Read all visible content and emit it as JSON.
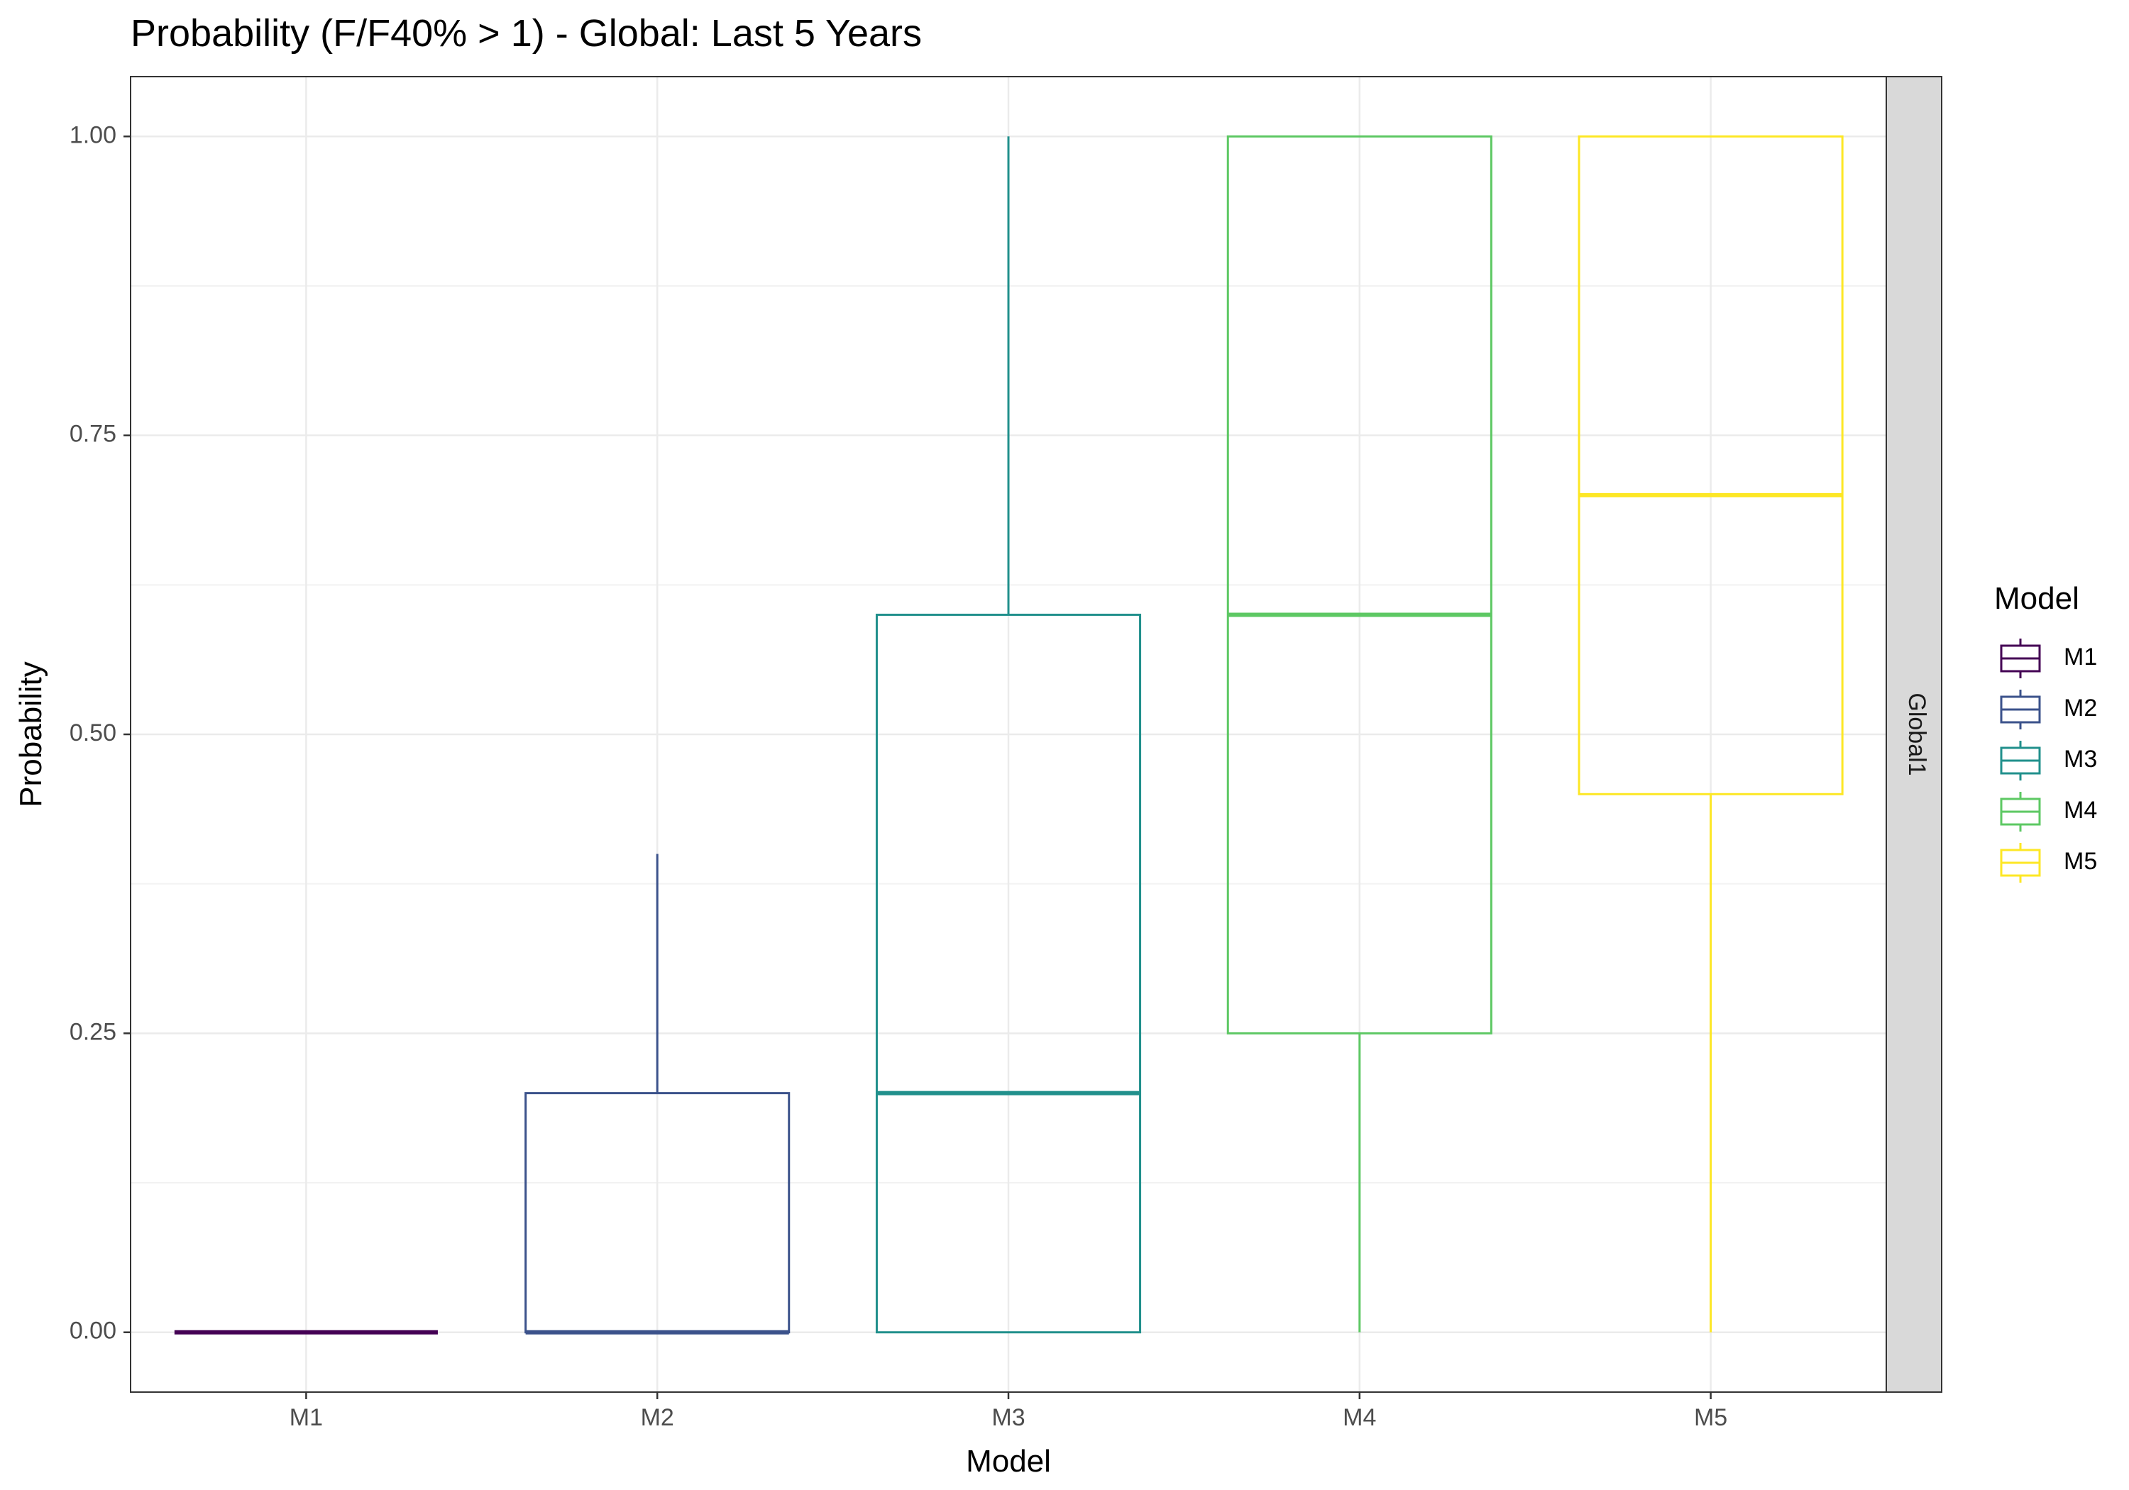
{
  "chart_data": {
    "type": "boxplot",
    "title": "Probability (F/F40% > 1) - Global: Last 5 Years",
    "xlabel": "Model",
    "ylabel": "Probability",
    "ylim": [
      -0.05,
      1.05
    ],
    "y_ticks": [
      0.0,
      0.25,
      0.5,
      0.75,
      1.0
    ],
    "y_tick_labels": [
      "0.00",
      "0.25",
      "0.50",
      "0.75",
      "1.00"
    ],
    "categories": [
      "M1",
      "M2",
      "M3",
      "M4",
      "M5"
    ],
    "facet_label": "Global1",
    "grid": true,
    "legend": {
      "title": "Model",
      "position": "right"
    },
    "series": [
      {
        "name": "M1",
        "color": "#440154",
        "min": 0.0,
        "q1": 0.0,
        "median": 0.0,
        "q3": 0.0,
        "max": 0.0
      },
      {
        "name": "M2",
        "color": "#3B528B",
        "min": 0.0,
        "q1": 0.0,
        "median": 0.0,
        "q3": 0.2,
        "max": 0.4
      },
      {
        "name": "M3",
        "color": "#21908C",
        "min": 0.0,
        "q1": 0.0,
        "median": 0.2,
        "q3": 0.6,
        "max": 1.0
      },
      {
        "name": "M4",
        "color": "#5DC863",
        "min": 0.0,
        "q1": 0.25,
        "median": 0.6,
        "q3": 1.0,
        "max": 1.0
      },
      {
        "name": "M5",
        "color": "#FDE725",
        "min": 0.0,
        "q1": 0.45,
        "median": 0.7,
        "q3": 1.0,
        "max": 1.0
      }
    ]
  }
}
